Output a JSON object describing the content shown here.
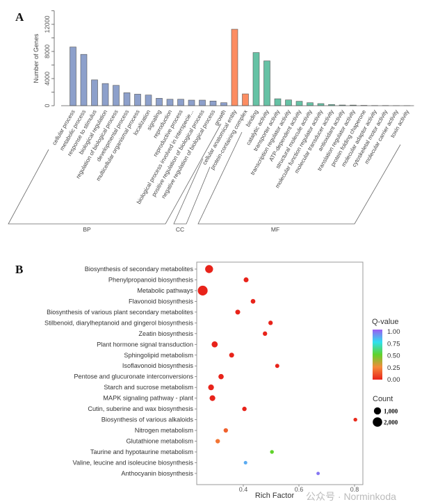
{
  "chart_data": [
    {
      "panel_label": "A",
      "type": "bar",
      "ylabel": "Number of Genes",
      "ylim": [
        0,
        14000
      ],
      "yticks": [
        0,
        4000,
        8000,
        12000
      ],
      "grid": false,
      "groups": [
        {
          "name": "BP",
          "color": "#8da0cb",
          "categories": [
            "cellular process",
            "metabolic process",
            "response to stimulus",
            "biological regulation",
            "regulation of biological process",
            "developmental process",
            "multicellular organismal process",
            "localization",
            "signaling",
            "reproduction",
            "reproductive process",
            "biological process involved in interspecie...",
            "positive regulation of biological process",
            "negative regulation of biological process",
            "growth"
          ],
          "values": [
            8660,
            7570,
            3810,
            3270,
            3000,
            1910,
            1700,
            1570,
            1090,
            950,
            950,
            820,
            820,
            690,
            440
          ]
        },
        {
          "name": "CC",
          "color": "#fc8d62",
          "categories": [
            "cellular anatomical entity",
            "protein-containing complex"
          ],
          "values": [
            11280,
            1740
          ]
        },
        {
          "name": "MF",
          "color": "#66c2a5",
          "categories": [
            "binding",
            "catalytic activity",
            "transporter activity",
            "transcription regulator activity",
            "ATP-dependent activity",
            "structural molecule activity",
            "molecular function regulator activity",
            "molecular transducer activity",
            "antioxidant activity",
            "translation regulator activity",
            "protein folding chaperone",
            "molecular adaptor activity",
            "cytoskeletal motor activity",
            "molecular carrier activity",
            "toxin activity"
          ],
          "values": [
            7840,
            6610,
            1020,
            850,
            650,
            440,
            310,
            170,
            100,
            90,
            50,
            30,
            30,
            20,
            10
          ]
        }
      ]
    },
    {
      "panel_label": "B",
      "type": "scatter",
      "xlabel": "Rich Factor",
      "xlim": [
        0.23,
        0.83
      ],
      "xticks": [
        "0.4",
        "0.6",
        "0.8"
      ],
      "grid": false,
      "categories": [
        "Biosynthesis of secondary metabolites",
        "Phenylpropanoid biosynthesis",
        "Metabolic pathways",
        "Flavonoid biosynthesis",
        "Biosynthesis of various plant secondary metabolites",
        "Stilbenoid, diarylheptanoid and gingerol biosynthesis",
        "Zeatin biosynthesis",
        "Plant hormone signal transduction",
        "Sphingolipid metabolism",
        "Isoflavonoid biosynthesis",
        "Pentose and glucuronate interconversions",
        "Starch and sucrose metabolism",
        "MAPK signaling pathway - plant",
        "Cutin, suberine and wax biosynthesis",
        "Biosynthesis of various alkaloids",
        "Nitrogen metabolism",
        "Glutathione metabolism",
        "Taurine and hypotaurine metabolism",
        "Valine, leucine and isoleucine biosynthesis",
        "Anthocyanin biosynthesis"
      ],
      "rich_factor": [
        0.277,
        0.41,
        0.254,
        0.435,
        0.38,
        0.498,
        0.478,
        0.297,
        0.358,
        0.522,
        0.32,
        0.284,
        0.289,
        0.404,
        0.803,
        0.337,
        0.308,
        0.503,
        0.408,
        0.669
      ],
      "count": [
        1300,
        350,
        2200,
        300,
        350,
        250,
        250,
        650,
        350,
        200,
        450,
        550,
        550,
        250,
        150,
        250,
        250,
        150,
        120,
        100
      ],
      "q_value": [
        0,
        0,
        0,
        0,
        0,
        0,
        0,
        0,
        0,
        0,
        0,
        0,
        0,
        0,
        0.02,
        0.15,
        0.2,
        0.5,
        0.85,
        0.95
      ],
      "color_legend": {
        "title": "Q-value",
        "ticks": [
          "1.00",
          "0.75",
          "0.50",
          "0.25",
          "0.00"
        ],
        "colors": [
          "#e8231a",
          "#f58a3a",
          "#5fd32a",
          "#2fe0f0",
          "#9b5cf2"
        ]
      },
      "size_legend": {
        "title": "Count",
        "labels": [
          "1,000",
          "2,000"
        ],
        "values": [
          1000,
          2000
        ]
      },
      "legend_position": "right"
    }
  ],
  "watermark": "公众号 · Norminkoda"
}
